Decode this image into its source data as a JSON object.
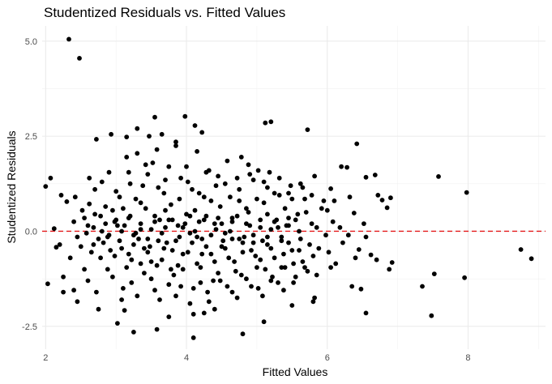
{
  "chart_data": {
    "type": "scatter",
    "title": "Studentized Residuals vs. Fitted Values",
    "xlabel": "Fitted Values",
    "ylabel": "Studentized Residuals",
    "xlim": [
      1.95,
      9.1
    ],
    "ylim": [
      -3.1,
      5.4
    ],
    "x_ticks": [
      2,
      4,
      6,
      8
    ],
    "x_tick_labels": [
      "2",
      "4",
      "6",
      "8"
    ],
    "y_ticks": [
      -2.5,
      0,
      2.5,
      5
    ],
    "y_tick_labels": [
      "-2.5",
      "0.0",
      "2.5",
      "5.0"
    ],
    "grid": true,
    "reference_line": {
      "y": 0,
      "color": "#e41a1c",
      "style": "dashed"
    },
    "point_color": "#000000",
    "points": [
      [
        2.33,
        5.05
      ],
      [
        2.48,
        4.55
      ],
      [
        3.55,
        3.0
      ],
      [
        3.98,
        3.02
      ],
      [
        4.22,
        2.6
      ],
      [
        5.12,
        2.85
      ],
      [
        5.2,
        2.88
      ],
      [
        5.72,
        2.67
      ],
      [
        6.42,
        2.3
      ],
      [
        2.93,
        2.55
      ],
      [
        3.3,
        2.7
      ],
      [
        3.47,
        2.5
      ],
      [
        3.65,
        2.55
      ],
      [
        4.12,
        2.78
      ],
      [
        2.72,
        2.42
      ],
      [
        3.15,
        2.48
      ],
      [
        3.85,
        2.35
      ],
      [
        6.2,
        1.7
      ],
      [
        6.28,
        1.68
      ],
      [
        6.55,
        1.42
      ],
      [
        6.68,
        1.48
      ],
      [
        7.58,
        1.44
      ],
      [
        7.98,
        1.02
      ],
      [
        6.9,
        0.88
      ],
      [
        6.72,
        0.95
      ],
      [
        6.78,
        0.82
      ],
      [
        6.85,
        0.62
      ],
      [
        2.0,
        1.18
      ],
      [
        2.07,
        1.4
      ],
      [
        2.22,
        0.95
      ],
      [
        2.3,
        0.78
      ],
      [
        2.12,
        0.07
      ],
      [
        2.2,
        -0.35
      ],
      [
        2.15,
        -0.42
      ],
      [
        2.25,
        -1.2
      ],
      [
        2.03,
        -1.38
      ],
      [
        2.25,
        -1.6
      ],
      [
        2.45,
        -1.85
      ],
      [
        2.4,
        -1.55
      ],
      [
        2.75,
        -2.05
      ],
      [
        3.02,
        -2.42
      ],
      [
        3.12,
        -2.08
      ],
      [
        3.25,
        -2.65
      ],
      [
        3.58,
        -2.58
      ],
      [
        3.75,
        -2.25
      ],
      [
        4.1,
        -2.18
      ],
      [
        4.1,
        -2.8
      ],
      [
        4.25,
        -2.15
      ],
      [
        4.4,
        -2.05
      ],
      [
        4.8,
        -2.7
      ],
      [
        5.1,
        -2.38
      ],
      [
        5.5,
        -1.95
      ],
      [
        5.8,
        -1.85
      ],
      [
        5.82,
        -1.75
      ],
      [
        6.35,
        -1.45
      ],
      [
        6.55,
        -2.15
      ],
      [
        6.48,
        -1.52
      ],
      [
        7.35,
        -1.45
      ],
      [
        7.48,
        -2.22
      ],
      [
        7.52,
        -1.12
      ],
      [
        7.95,
        -1.22
      ],
      [
        8.75,
        -0.48
      ],
      [
        8.9,
        -0.72
      ],
      [
        6.92,
        -0.82
      ],
      [
        6.88,
        -1.0
      ],
      [
        6.62,
        -0.62
      ],
      [
        6.7,
        -0.75
      ],
      [
        6.45,
        -0.48
      ],
      [
        6.55,
        -0.15
      ],
      [
        6.38,
        0.48
      ],
      [
        6.52,
        0.2
      ],
      [
        6.1,
        0.8
      ],
      [
        6.05,
        1.12
      ],
      [
        6.0,
        0.55
      ],
      [
        2.55,
        0.35
      ],
      [
        2.62,
        0.72
      ],
      [
        2.7,
        1.1
      ],
      [
        2.8,
        1.3
      ],
      [
        2.85,
        0.2
      ],
      [
        2.9,
        -0.1
      ],
      [
        2.95,
        0.55
      ],
      [
        3.05,
        0.9
      ],
      [
        3.08,
        -0.45
      ],
      [
        3.12,
        0.15
      ],
      [
        3.18,
        1.55
      ],
      [
        3.2,
        0.4
      ],
      [
        3.22,
        -0.75
      ],
      [
        3.28,
        0.85
      ],
      [
        3.32,
        -0.2
      ],
      [
        3.38,
        1.2
      ],
      [
        3.42,
        0.6
      ],
      [
        3.45,
        -0.55
      ],
      [
        3.5,
        0.05
      ],
      [
        3.52,
        1.8
      ],
      [
        3.58,
        -0.9
      ],
      [
        3.62,
        0.3
      ],
      [
        3.68,
        1.0
      ],
      [
        3.72,
        -0.3
      ],
      [
        3.78,
        0.7
      ],
      [
        3.82,
        -1.15
      ],
      [
        3.88,
        0.15
      ],
      [
        3.92,
        1.4
      ],
      [
        3.95,
        -0.6
      ],
      [
        4.0,
        0.45
      ],
      [
        4.05,
        -0.05
      ],
      [
        4.08,
        1.1
      ],
      [
        4.15,
        -0.85
      ],
      [
        4.18,
        0.25
      ],
      [
        4.25,
        0.9
      ],
      [
        4.28,
        -0.4
      ],
      [
        4.32,
        1.6
      ],
      [
        4.38,
        -1.3
      ],
      [
        4.42,
        0.05
      ],
      [
        4.48,
        0.65
      ],
      [
        4.52,
        -0.25
      ],
      [
        4.55,
        1.25
      ],
      [
        4.6,
        -0.7
      ],
      [
        4.65,
        0.35
      ],
      [
        4.7,
        -1.05
      ],
      [
        4.75,
        0.8
      ],
      [
        4.78,
        1.95
      ],
      [
        4.82,
        -0.15
      ],
      [
        4.88,
        0.5
      ],
      [
        4.92,
        -0.5
      ],
      [
        4.95,
        1.35
      ],
      [
        5.0,
        -0.95
      ],
      [
        5.05,
        0.1
      ],
      [
        5.1,
        0.75
      ],
      [
        5.15,
        -0.35
      ],
      [
        5.18,
        1.55
      ],
      [
        5.22,
        -1.2
      ],
      [
        5.28,
        0.3
      ],
      [
        5.32,
        0.95
      ],
      [
        5.38,
        -0.6
      ],
      [
        5.42,
        0.15
      ],
      [
        5.48,
        1.2
      ],
      [
        5.52,
        -0.85
      ],
      [
        5.58,
        0.45
      ],
      [
        5.62,
        -0.2
      ],
      [
        5.68,
        0.85
      ],
      [
        5.72,
        -1.05
      ],
      [
        5.78,
        0.2
      ],
      [
        5.82,
        1.45
      ],
      [
        5.88,
        -0.45
      ],
      [
        5.92,
        0.6
      ],
      [
        5.98,
        -0.1
      ],
      [
        6.02,
        -0.55
      ],
      [
        6.08,
        0.25
      ],
      [
        6.12,
        -0.85
      ],
      [
        6.18,
        0.1
      ],
      [
        6.22,
        -0.3
      ],
      [
        6.3,
        -0.1
      ],
      [
        6.32,
        0.9
      ],
      [
        6.4,
        -0.7
      ],
      [
        2.5,
        -0.4
      ],
      [
        2.58,
        -0.05
      ],
      [
        2.6,
        -1.3
      ],
      [
        2.68,
        0.1
      ],
      [
        2.78,
        -0.7
      ],
      [
        2.82,
        -0.3
      ],
      [
        2.88,
        -1.0
      ],
      [
        2.98,
        -0.65
      ],
      [
        3.0,
        0.3
      ],
      [
        3.1,
        -1.5
      ],
      [
        3.15,
        -0.95
      ],
      [
        3.25,
        -0.35
      ],
      [
        3.3,
        -1.7
      ],
      [
        3.35,
        0.05
      ],
      [
        3.4,
        -1.1
      ],
      [
        3.48,
        -0.4
      ],
      [
        3.55,
        -1.55
      ],
      [
        3.6,
        -0.25
      ],
      [
        3.65,
        -0.75
      ],
      [
        3.7,
        0.1
      ],
      [
        3.75,
        -1.4
      ],
      [
        3.8,
        -0.5
      ],
      [
        3.85,
        -1.7
      ],
      [
        3.9,
        -0.15
      ],
      [
        3.95,
        -1.0
      ],
      [
        4.02,
        -0.55
      ],
      [
        4.1,
        -1.5
      ],
      [
        4.12,
        0.0
      ],
      [
        4.2,
        -0.95
      ],
      [
        4.22,
        -0.2
      ],
      [
        4.3,
        -1.6
      ],
      [
        4.35,
        -0.6
      ],
      [
        4.4,
        0.2
      ],
      [
        4.45,
        -1.1
      ],
      [
        4.5,
        -0.4
      ],
      [
        4.58,
        -1.45
      ],
      [
        4.62,
        0.0
      ],
      [
        4.68,
        -0.8
      ],
      [
        4.72,
        -1.75
      ],
      [
        4.8,
        -0.3
      ],
      [
        4.85,
        -1.25
      ],
      [
        4.9,
        0.15
      ],
      [
        4.98,
        -0.65
      ],
      [
        5.02,
        -1.5
      ],
      [
        5.08,
        -0.25
      ],
      [
        5.12,
        -1.0
      ],
      [
        5.2,
        0.05
      ],
      [
        5.25,
        -0.7
      ],
      [
        5.3,
        -1.35
      ],
      [
        5.35,
        -0.15
      ],
      [
        5.4,
        -0.95
      ],
      [
        5.45,
        0.35
      ],
      [
        5.5,
        -0.5
      ],
      [
        5.55,
        -1.2
      ],
      [
        5.6,
        0.0
      ],
      [
        5.65,
        -0.8
      ],
      [
        5.7,
        0.5
      ],
      [
        5.75,
        -0.35
      ],
      [
        5.8,
        -0.65
      ],
      [
        5.85,
        0.1
      ],
      [
        2.4,
        0.25
      ],
      [
        2.45,
        -0.15
      ],
      [
        2.52,
        0.55
      ],
      [
        2.65,
        -0.55
      ],
      [
        2.7,
        0.45
      ],
      [
        2.75,
        -0.2
      ],
      [
        2.85,
        0.65
      ],
      [
        2.92,
        -0.5
      ],
      [
        3.0,
        1.05
      ],
      [
        3.05,
        -0.25
      ],
      [
        3.1,
        0.6
      ],
      [
        3.18,
        -0.6
      ],
      [
        3.2,
        1.25
      ],
      [
        3.28,
        -0.05
      ],
      [
        3.35,
        0.75
      ],
      [
        3.4,
        -0.45
      ],
      [
        3.45,
        1.5
      ],
      [
        3.5,
        -0.8
      ],
      [
        3.55,
        0.4
      ],
      [
        3.6,
        1.15
      ],
      [
        3.68,
        -0.45
      ],
      [
        3.7,
        0.55
      ],
      [
        3.75,
        1.7
      ],
      [
        3.8,
        0.3
      ],
      [
        3.88,
        -0.9
      ],
      [
        3.9,
        0.85
      ],
      [
        3.98,
        0.2
      ],
      [
        4.02,
        1.3
      ],
      [
        4.08,
        -0.3
      ],
      [
        4.12,
        0.55
      ],
      [
        4.18,
        1.0
      ],
      [
        4.22,
        -0.6
      ],
      [
        4.28,
        0.4
      ],
      [
        4.35,
        0.8
      ],
      [
        4.4,
        -0.8
      ],
      [
        4.45,
        1.45
      ],
      [
        4.5,
        0.2
      ],
      [
        4.55,
        -0.45
      ],
      [
        4.62,
        0.9
      ],
      [
        4.65,
        -0.2
      ],
      [
        4.72,
        0.4
      ],
      [
        4.75,
        1.1
      ],
      [
        4.8,
        -0.55
      ],
      [
        4.85,
        0.6
      ],
      [
        4.9,
        1.5
      ],
      [
        4.95,
        -0.3
      ],
      [
        5.0,
        0.85
      ],
      [
        5.05,
        -0.75
      ],
      [
        5.1,
        1.3
      ],
      [
        5.15,
        0.45
      ],
      [
        5.2,
        -0.45
      ],
      [
        5.25,
        1.0
      ],
      [
        5.3,
        0.1
      ],
      [
        5.35,
        -0.95
      ],
      [
        5.4,
        0.6
      ],
      [
        5.45,
        -0.3
      ],
      [
        5.5,
        0.85
      ],
      [
        5.55,
        0.3
      ],
      [
        5.6,
        -0.5
      ],
      [
        5.65,
        1.15
      ],
      [
        2.35,
        -0.7
      ],
      [
        2.42,
        0.9
      ],
      [
        2.55,
        -1.0
      ],
      [
        2.62,
        1.4
      ],
      [
        2.72,
        -1.6
      ],
      [
        2.8,
        0.0
      ],
      [
        2.9,
        1.55
      ],
      [
        2.95,
        -1.2
      ],
      [
        3.02,
        0.15
      ],
      [
        3.08,
        -1.8
      ],
      [
        3.15,
        1.95
      ],
      [
        3.22,
        -1.35
      ],
      [
        3.3,
        2.05
      ],
      [
        3.35,
        -0.85
      ],
      [
        3.42,
        1.75
      ],
      [
        3.5,
        -1.25
      ],
      [
        3.58,
        2.15
      ],
      [
        3.62,
        -1.8
      ],
      [
        3.7,
        1.35
      ],
      [
        3.78,
        -1.0
      ],
      [
        3.85,
        2.25
      ],
      [
        3.92,
        -1.45
      ],
      [
        4.0,
        1.7
      ],
      [
        4.05,
        -1.9
      ],
      [
        4.15,
        2.1
      ],
      [
        4.2,
        -1.35
      ],
      [
        4.28,
        1.55
      ],
      [
        4.32,
        -1.85
      ],
      [
        4.42,
        1.2
      ],
      [
        4.48,
        -1.3
      ],
      [
        4.58,
        1.85
      ],
      [
        4.65,
        -1.6
      ],
      [
        4.72,
        1.4
      ],
      [
        4.78,
        -1.15
      ],
      [
        4.88,
        1.75
      ],
      [
        4.92,
        -1.45
      ],
      [
        5.02,
        1.6
      ],
      [
        5.08,
        -1.7
      ],
      [
        5.15,
        1.15
      ],
      [
        5.2,
        -1.3
      ],
      [
        5.32,
        1.4
      ],
      [
        5.38,
        -1.55
      ],
      [
        5.45,
        1.0
      ],
      [
        5.52,
        -1.35
      ],
      [
        5.62,
        1.25
      ],
      [
        5.68,
        -0.95
      ],
      [
        5.78,
        0.95
      ],
      [
        5.85,
        -1.15
      ],
      [
        5.95,
        0.8
      ],
      [
        6.05,
        -0.95
      ],
      [
        2.6,
        0.15
      ],
      [
        2.68,
        -0.35
      ],
      [
        2.78,
        0.4
      ],
      [
        2.88,
        -0.15
      ],
      [
        2.98,
        0.25
      ],
      [
        3.08,
        0.0
      ],
      [
        3.18,
        0.35
      ],
      [
        3.25,
        -0.1
      ],
      [
        3.35,
        0.2
      ],
      [
        3.45,
        -0.2
      ],
      [
        3.55,
        0.25
      ],
      [
        3.65,
        -0.05
      ],
      [
        3.75,
        0.3
      ],
      [
        3.85,
        -0.25
      ],
      [
        3.95,
        0.1
      ],
      [
        4.05,
        0.4
      ],
      [
        4.15,
        -0.15
      ],
      [
        4.25,
        0.3
      ],
      [
        4.35,
        -0.1
      ],
      [
        4.45,
        0.35
      ],
      [
        4.55,
        -0.05
      ],
      [
        4.65,
        0.25
      ],
      [
        4.75,
        -0.2
      ],
      [
        4.85,
        0.2
      ],
      [
        4.95,
        -0.1
      ],
      [
        5.05,
        0.3
      ],
      [
        5.15,
        -0.15
      ],
      [
        5.25,
        0.25
      ],
      [
        5.35,
        -0.25
      ],
      [
        5.45,
        0.15
      ]
    ]
  }
}
